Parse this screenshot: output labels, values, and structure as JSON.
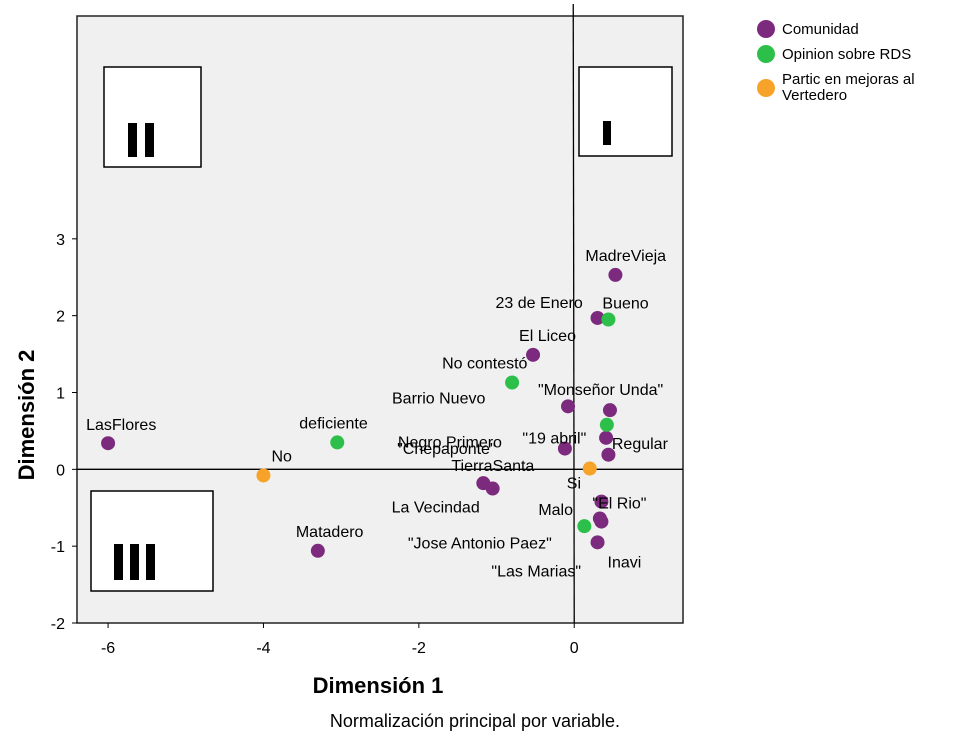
{
  "chart_data": {
    "type": "scatter",
    "xlabel": "Dimensión 1",
    "ylabel": "Dimensión 2",
    "xlim": [
      -6.4,
      1.4
    ],
    "ylim": [
      -2,
      5.9
    ],
    "x_ticks": [
      "-6",
      "-4",
      "-2",
      "0"
    ],
    "y_ticks": [
      "-2",
      "-1",
      "0",
      "1",
      "2",
      "3"
    ],
    "footnote": "Normalización principal por variable.",
    "legend": {
      "position": "top-right"
    },
    "quadrant_labels": [
      "I",
      "II",
      "III"
    ],
    "series": [
      {
        "name": "Comunidad",
        "color": "#7b2a7e",
        "points": [
          {
            "label": "MadreVieja",
            "x": 0.53,
            "y": 2.53
          },
          {
            "label": "23 de Enero",
            "x": 0.3,
            "y": 1.97
          },
          {
            "label": "El Liceo",
            "x": -0.53,
            "y": 1.49
          },
          {
            "label": "\"Monseñor Unda\"",
            "x": 0.46,
            "y": 0.77
          },
          {
            "label": "Barrio Nuevo",
            "x": -0.08,
            "y": 0.82
          },
          {
            "label": "\"Chepaponte\"",
            "x": 0.41,
            "y": 0.41
          },
          {
            "label": "\"19 abril\"",
            "x": 0.44,
            "y": 0.19
          },
          {
            "label": "Negro Primero",
            "x": -0.12,
            "y": 0.27
          },
          {
            "label": "LasFlores",
            "x": -6.0,
            "y": 0.34
          },
          {
            "label": "TierraSanta",
            "x": -1.17,
            "y": -0.18
          },
          {
            "label": "La Vecindad",
            "x": -1.05,
            "y": -0.25
          },
          {
            "label": "\"El Rio\"",
            "x": 0.35,
            "y": -0.42
          },
          {
            "label": "\"Jose Antonio Paez\"",
            "x": 0.33,
            "y": -0.64
          },
          {
            "label": "Inavi",
            "x": 0.3,
            "y": -0.95
          },
          {
            "label": "\"Las Marias\"",
            "x": 0.35,
            "y": -0.68
          },
          {
            "label": "Matadero",
            "x": -3.3,
            "y": -1.06
          }
        ]
      },
      {
        "name": "Opinion sobre RDS",
        "color": "#2cbf4a",
        "points": [
          {
            "label": "Bueno",
            "x": 0.44,
            "y": 1.95
          },
          {
            "label": "No contestó",
            "x": -0.8,
            "y": 1.13
          },
          {
            "label": "Regular",
            "x": 0.42,
            "y": 0.58
          },
          {
            "label": "deficiente",
            "x": -3.05,
            "y": 0.35
          },
          {
            "label": "Malo",
            "x": 0.13,
            "y": -0.74
          }
        ]
      },
      {
        "name": "Partic en mejoras al Vertedero",
        "legend_lines": [
          "Partic en mejoras al",
          "Vertedero"
        ],
        "color": "#f7a229",
        "points": [
          {
            "label": "No",
            "x": -4.0,
            "y": -0.08
          },
          {
            "label": "Si",
            "x": 0.2,
            "y": 0.01
          }
        ]
      }
    ]
  }
}
